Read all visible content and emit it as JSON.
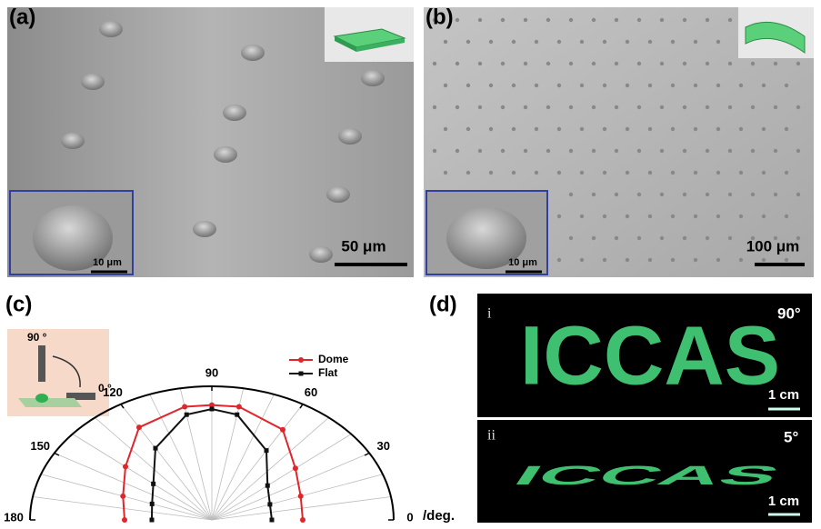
{
  "panel_a": {
    "label": "(a)",
    "scale_bar": "50 μm",
    "inset_scale": "10 μm"
  },
  "panel_b": {
    "label": "(b)",
    "scale_bar": "100 μm",
    "inset_scale": "10 μm"
  },
  "panel_c": {
    "label": "(c)",
    "inset_angle_top": "90 °",
    "inset_angle_side": "0 °"
  },
  "chart_data": {
    "type": "polar",
    "x_label": "/deg.",
    "x": [
      0,
      20,
      40,
      60,
      80,
      90,
      100,
      120,
      140,
      160,
      180
    ],
    "xlim": [
      0,
      180
    ],
    "xticks": [
      0,
      30,
      60,
      90,
      120,
      150,
      180
    ],
    "rlim": [
      0,
      1
    ],
    "grid": true,
    "legend": "top-right",
    "series": [
      {
        "name": "Dome",
        "color": "#e0262b",
        "values": [
          0.5,
          0.52,
          0.6,
          0.78,
          0.86,
          0.86,
          0.86,
          0.8,
          0.62,
          0.52,
          0.48
        ]
      },
      {
        "name": "Flat",
        "color": "#111111",
        "values": [
          0.33,
          0.34,
          0.4,
          0.6,
          0.8,
          0.83,
          0.8,
          0.62,
          0.42,
          0.35,
          0.33
        ]
      }
    ]
  },
  "panel_d": {
    "label": "(d)",
    "rows": [
      {
        "roman": "i",
        "text": "ICCAS",
        "angle": "90°",
        "scale_bar": "1 cm"
      },
      {
        "roman": "ii",
        "text": "ICCAS",
        "angle": "5°",
        "scale_bar": "1 cm"
      }
    ]
  }
}
